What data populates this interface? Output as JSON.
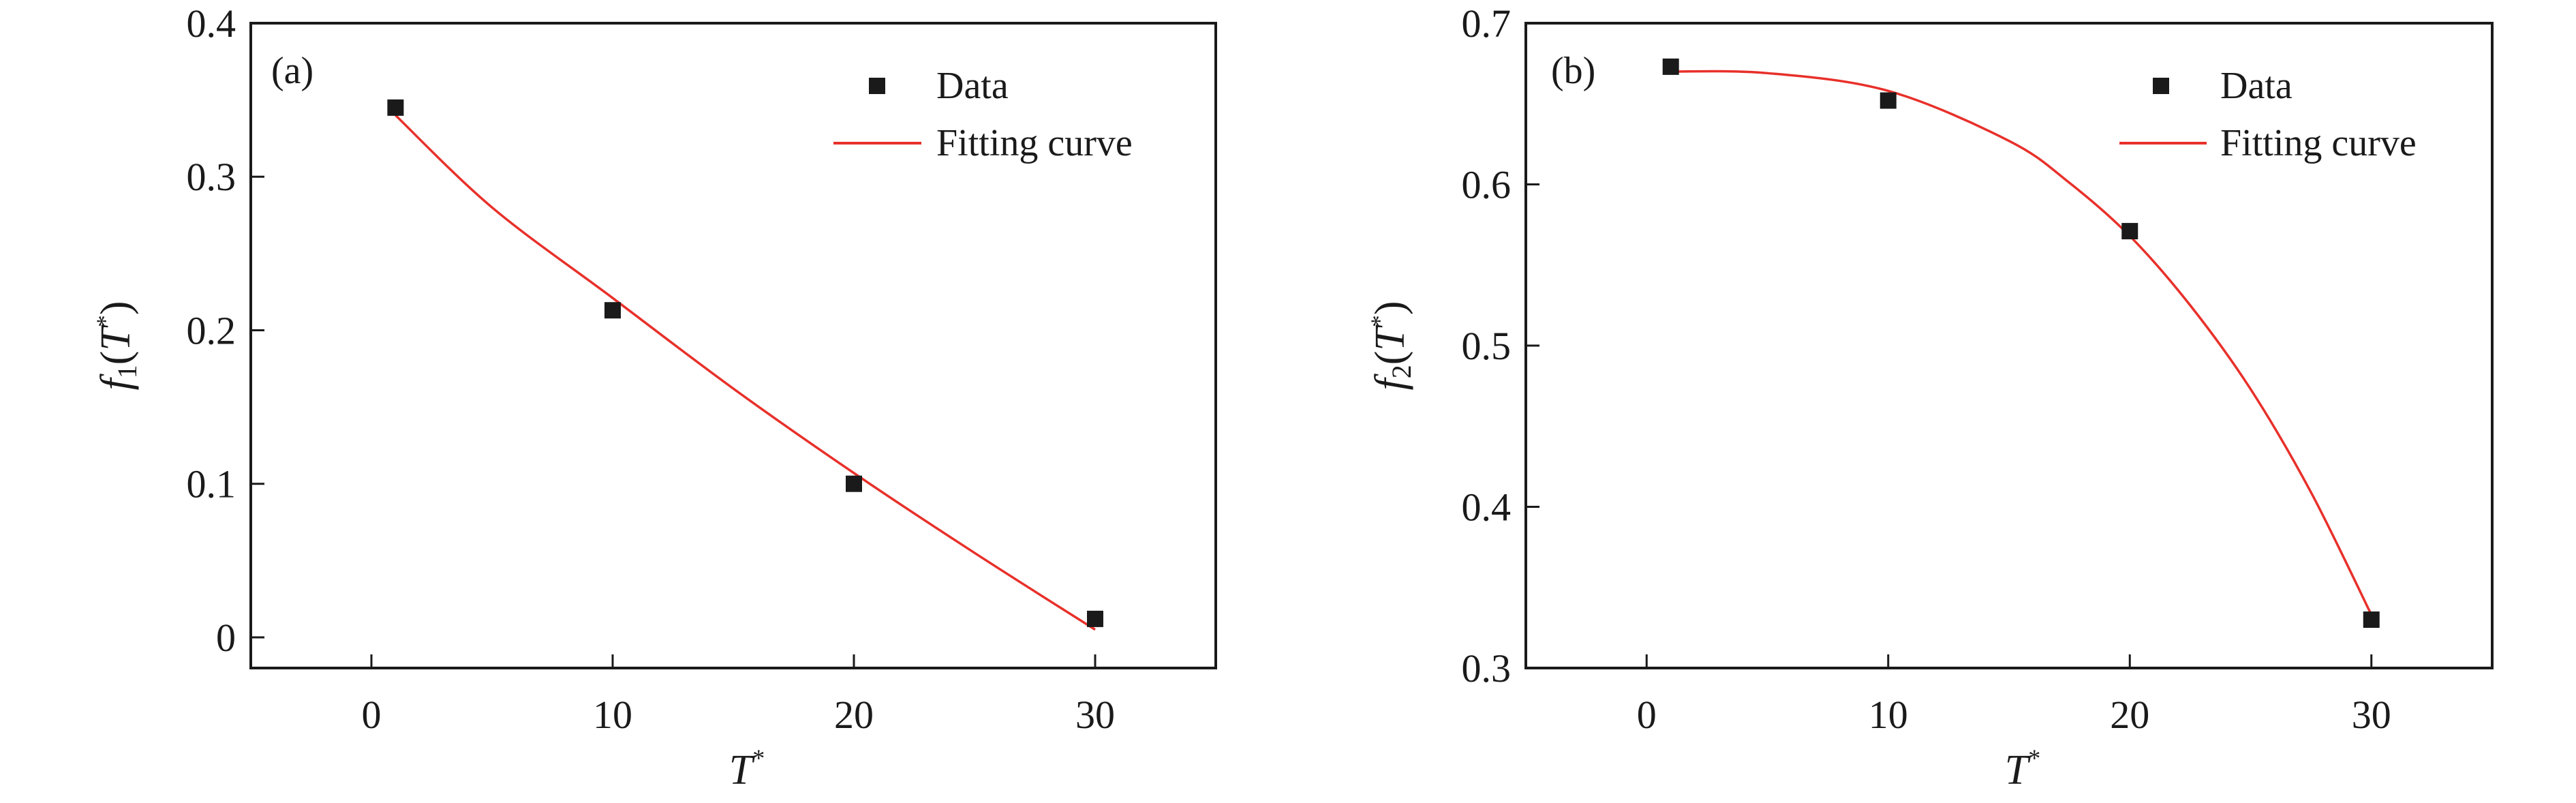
{
  "chart_data": [
    {
      "type": "scatter",
      "panel_label": "(a)",
      "xlabel": "T*",
      "ylabel": "f1(T*)",
      "xlim": [
        -5,
        35
      ],
      "ylim": [
        -0.02,
        0.4
      ],
      "xticks": [
        0,
        10,
        20,
        30
      ],
      "yticks": [
        0,
        0.1,
        0.2,
        0.3,
        0.4
      ],
      "ytick_labels": [
        "0",
        "0.1",
        "0.2",
        "0.3",
        "0.4"
      ],
      "grid": false,
      "legend_position": "top-right",
      "series": [
        {
          "name": "Data",
          "kind": "scatter",
          "marker": "square",
          "color": "#1a1a1a",
          "x": [
            1,
            10,
            20,
            30
          ],
          "y": [
            0.345,
            0.213,
            0.1,
            0.012
          ]
        },
        {
          "name": "Fitting curve",
          "kind": "line",
          "color": "#e8302a",
          "x": [
            1,
            5,
            10,
            15,
            20,
            25,
            30
          ],
          "y": [
            0.34,
            0.28,
            0.221,
            0.162,
            0.107,
            0.055,
            0.005
          ]
        }
      ]
    },
    {
      "type": "scatter",
      "panel_label": "(b)",
      "xlabel": "T*",
      "ylabel": "f2(T*)",
      "xlim": [
        -5,
        35
      ],
      "ylim": [
        0.3,
        0.7
      ],
      "xticks": [
        0,
        10,
        20,
        30
      ],
      "yticks": [
        0.3,
        0.4,
        0.5,
        0.6,
        0.7
      ],
      "ytick_labels": [
        "0.3",
        "0.4",
        "0.5",
        "0.6",
        "0.7"
      ],
      "grid": false,
      "legend_position": "top-right",
      "series": [
        {
          "name": "Data",
          "kind": "scatter",
          "marker": "square",
          "color": "#1a1a1a",
          "x": [
            1,
            10,
            20,
            30
          ],
          "y": [
            0.673,
            0.652,
            0.571,
            0.33
          ]
        },
        {
          "name": "Fitting curve",
          "kind": "line",
          "color": "#e8302a",
          "x": [
            1,
            5,
            10,
            15,
            17.5,
            20,
            22.5,
            25,
            27.5,
            30
          ],
          "y": [
            0.67,
            0.669,
            0.658,
            0.627,
            0.601,
            0.568,
            0.525,
            0.473,
            0.409,
            0.333
          ]
        }
      ]
    }
  ]
}
